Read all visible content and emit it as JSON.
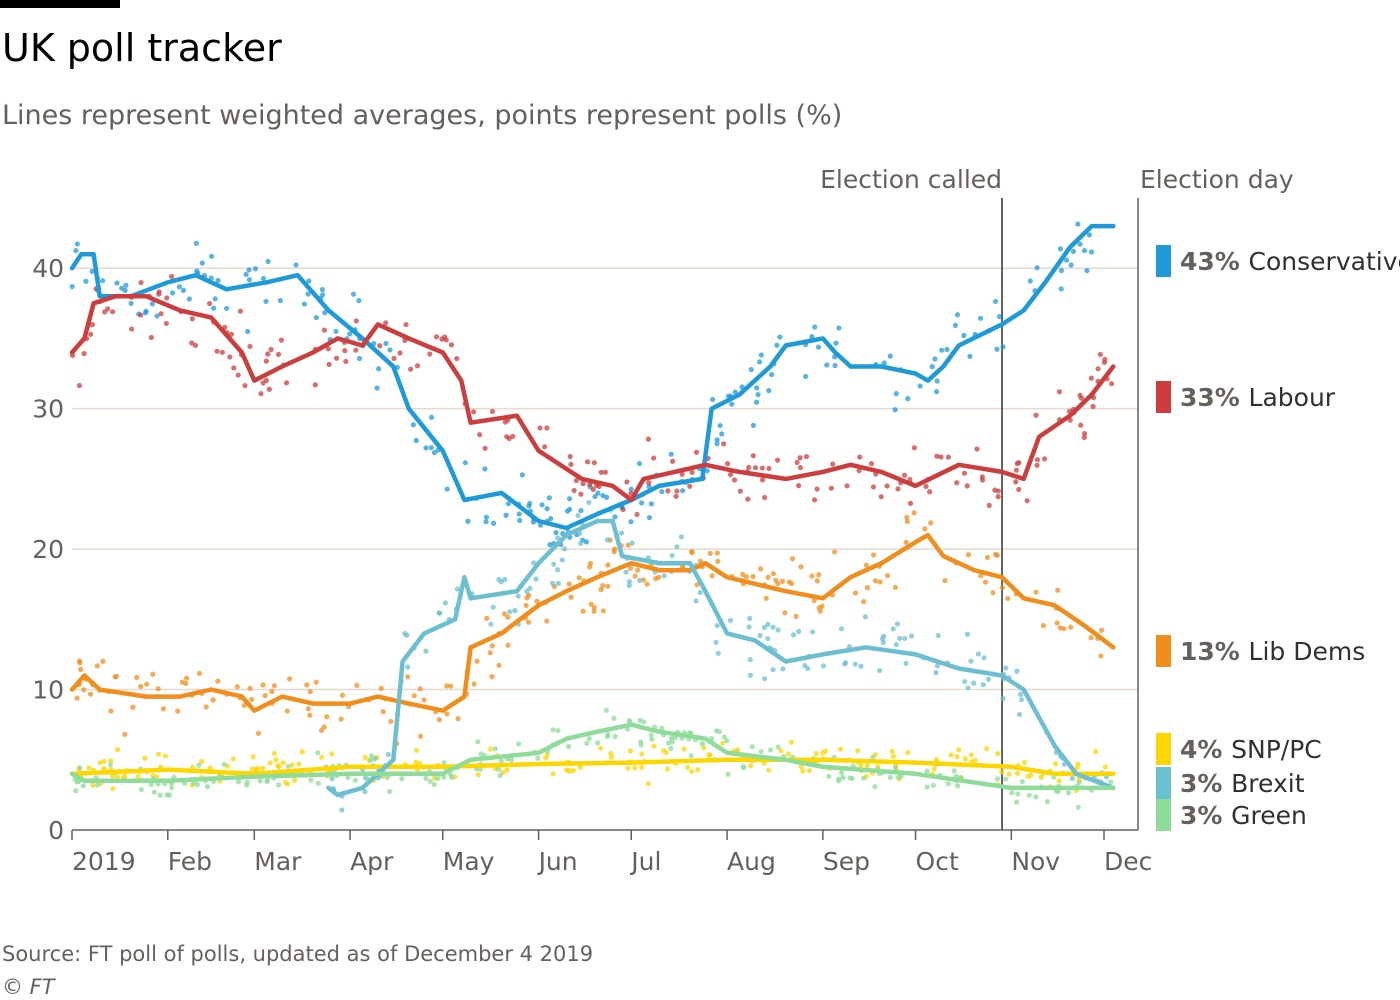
{
  "title": "UK poll tracker",
  "subtitle": "Lines represent weighted averages, points represent polls (%)",
  "source": "Source: FT poll of polls, updated as of December 4 2019",
  "credit": "© FT",
  "chart_data": {
    "type": "line",
    "ylim": [
      0,
      45
    ],
    "yticks": [
      0,
      10,
      20,
      30,
      40
    ],
    "ytick_labels": [
      "0",
      "10",
      "20",
      "30",
      "40"
    ],
    "x_range": [
      "2019-01-01",
      "2019-12-12"
    ],
    "xticks": [
      {
        "date": "2019-01-01",
        "label": "2019"
      },
      {
        "date": "2019-02-01",
        "label": "Feb"
      },
      {
        "date": "2019-03-01",
        "label": "Mar"
      },
      {
        "date": "2019-04-01",
        "label": "Apr"
      },
      {
        "date": "2019-05-01",
        "label": "May"
      },
      {
        "date": "2019-06-01",
        "label": "Jun"
      },
      {
        "date": "2019-07-01",
        "label": "Jul"
      },
      {
        "date": "2019-08-01",
        "label": "Aug"
      },
      {
        "date": "2019-09-01",
        "label": "Sep"
      },
      {
        "date": "2019-10-01",
        "label": "Oct"
      },
      {
        "date": "2019-11-01",
        "label": "Nov"
      },
      {
        "date": "2019-12-01",
        "label": "Dec"
      }
    ],
    "grid": true,
    "legend": "right",
    "annotations": [
      {
        "date": "2019-10-29",
        "label": "Election called"
      },
      {
        "date": "2019-12-12",
        "label": "Election day"
      }
    ],
    "series": [
      {
        "name": "Conservative",
        "label_value": "43%",
        "color": "#1f9ad8",
        "points": [
          [
            "2019-01-01",
            40
          ],
          [
            "2019-01-04",
            41
          ],
          [
            "2019-01-08",
            41
          ],
          [
            "2019-01-10",
            38
          ],
          [
            "2019-01-20",
            38
          ],
          [
            "2019-02-01",
            39
          ],
          [
            "2019-02-10",
            39.5
          ],
          [
            "2019-02-20",
            38.5
          ],
          [
            "2019-03-05",
            39
          ],
          [
            "2019-03-15",
            39.5
          ],
          [
            "2019-03-25",
            37
          ],
          [
            "2019-04-05",
            35
          ],
          [
            "2019-04-15",
            33
          ],
          [
            "2019-04-20",
            30
          ],
          [
            "2019-05-01",
            27
          ],
          [
            "2019-05-08",
            23.5
          ],
          [
            "2019-05-20",
            24
          ],
          [
            "2019-06-01",
            22
          ],
          [
            "2019-06-10",
            21.5
          ],
          [
            "2019-06-20",
            22.5
          ],
          [
            "2019-07-01",
            23.5
          ],
          [
            "2019-07-10",
            24.5
          ],
          [
            "2019-07-24",
            25
          ],
          [
            "2019-07-27",
            30
          ],
          [
            "2019-08-05",
            31
          ],
          [
            "2019-08-15",
            33
          ],
          [
            "2019-08-20",
            34.5
          ],
          [
            "2019-09-01",
            35
          ],
          [
            "2019-09-05",
            34
          ],
          [
            "2019-09-10",
            33
          ],
          [
            "2019-09-20",
            33
          ],
          [
            "2019-10-01",
            32.5
          ],
          [
            "2019-10-05",
            32
          ],
          [
            "2019-10-10",
            33
          ],
          [
            "2019-10-15",
            34.5
          ],
          [
            "2019-10-29",
            36
          ],
          [
            "2019-11-05",
            37
          ],
          [
            "2019-11-12",
            39
          ],
          [
            "2019-11-20",
            41.5
          ],
          [
            "2019-11-27",
            43
          ],
          [
            "2019-12-04",
            43
          ]
        ]
      },
      {
        "name": "Labour",
        "label_value": "33%",
        "color": "#cc3d3d",
        "points": [
          [
            "2019-01-01",
            34
          ],
          [
            "2019-01-05",
            35
          ],
          [
            "2019-01-08",
            37.5
          ],
          [
            "2019-01-15",
            38
          ],
          [
            "2019-01-25",
            38
          ],
          [
            "2019-02-05",
            37
          ],
          [
            "2019-02-15",
            36.5
          ],
          [
            "2019-02-25",
            34
          ],
          [
            "2019-03-01",
            32
          ],
          [
            "2019-03-10",
            33
          ],
          [
            "2019-03-20",
            34
          ],
          [
            "2019-03-28",
            35
          ],
          [
            "2019-04-05",
            34.5
          ],
          [
            "2019-04-10",
            36
          ],
          [
            "2019-04-20",
            35
          ],
          [
            "2019-05-01",
            34
          ],
          [
            "2019-05-07",
            32
          ],
          [
            "2019-05-10",
            29
          ],
          [
            "2019-05-25",
            29.5
          ],
          [
            "2019-06-01",
            27
          ],
          [
            "2019-06-15",
            25
          ],
          [
            "2019-06-25",
            24.5
          ],
          [
            "2019-07-01",
            23.5
          ],
          [
            "2019-07-05",
            25
          ],
          [
            "2019-07-15",
            25.5
          ],
          [
            "2019-07-25",
            26
          ],
          [
            "2019-08-05",
            25.5
          ],
          [
            "2019-08-20",
            25
          ],
          [
            "2019-09-01",
            25.5
          ],
          [
            "2019-09-10",
            26
          ],
          [
            "2019-09-20",
            25.5
          ],
          [
            "2019-10-01",
            24.5
          ],
          [
            "2019-10-15",
            26
          ],
          [
            "2019-10-29",
            25.5
          ],
          [
            "2019-11-05",
            25
          ],
          [
            "2019-11-10",
            28
          ],
          [
            "2019-11-20",
            29.5
          ],
          [
            "2019-11-27",
            31
          ],
          [
            "2019-12-04",
            33
          ]
        ]
      },
      {
        "name": "Lib Dems",
        "label_value": "13%",
        "color": "#f18d1d",
        "points": [
          [
            "2019-01-01",
            10
          ],
          [
            "2019-01-05",
            11
          ],
          [
            "2019-01-10",
            10
          ],
          [
            "2019-01-25",
            9.5
          ],
          [
            "2019-02-05",
            9.5
          ],
          [
            "2019-02-15",
            10
          ],
          [
            "2019-02-25",
            9.5
          ],
          [
            "2019-03-01",
            8.5
          ],
          [
            "2019-03-10",
            9.5
          ],
          [
            "2019-03-20",
            9
          ],
          [
            "2019-04-01",
            9
          ],
          [
            "2019-04-10",
            9.5
          ],
          [
            "2019-04-20",
            9
          ],
          [
            "2019-05-01",
            8.5
          ],
          [
            "2019-05-08",
            9.5
          ],
          [
            "2019-05-10",
            13
          ],
          [
            "2019-05-20",
            14
          ],
          [
            "2019-06-01",
            16
          ],
          [
            "2019-06-10",
            17
          ],
          [
            "2019-06-20",
            18
          ],
          [
            "2019-07-01",
            19
          ],
          [
            "2019-07-10",
            18.5
          ],
          [
            "2019-07-20",
            18.5
          ],
          [
            "2019-07-25",
            19
          ],
          [
            "2019-08-01",
            18
          ],
          [
            "2019-08-20",
            17
          ],
          [
            "2019-09-01",
            16.5
          ],
          [
            "2019-09-10",
            18
          ],
          [
            "2019-09-20",
            19
          ],
          [
            "2019-10-01",
            20.5
          ],
          [
            "2019-10-05",
            21
          ],
          [
            "2019-10-10",
            19.5
          ],
          [
            "2019-10-20",
            18.5
          ],
          [
            "2019-10-29",
            18
          ],
          [
            "2019-11-05",
            16.5
          ],
          [
            "2019-11-15",
            16
          ],
          [
            "2019-11-25",
            14.5
          ],
          [
            "2019-12-04",
            13
          ]
        ]
      },
      {
        "name": "SNP/PC",
        "label_value": "4%",
        "color": "#fcd600",
        "points": [
          [
            "2019-01-01",
            4
          ],
          [
            "2019-02-01",
            4.3
          ],
          [
            "2019-03-01",
            4
          ],
          [
            "2019-04-01",
            4.5
          ],
          [
            "2019-05-01",
            4.5
          ],
          [
            "2019-06-01",
            4.7
          ],
          [
            "2019-07-01",
            4.8
          ],
          [
            "2019-08-01",
            5
          ],
          [
            "2019-09-01",
            5
          ],
          [
            "2019-10-01",
            4.8
          ],
          [
            "2019-11-01",
            4.5
          ],
          [
            "2019-11-15",
            4
          ],
          [
            "2019-12-04",
            4
          ]
        ]
      },
      {
        "name": "Brexit",
        "label_value": "3%",
        "color": "#6cbfd0",
        "points": [
          [
            "2019-03-25",
            3
          ],
          [
            "2019-03-28",
            2.5
          ],
          [
            "2019-04-05",
            3
          ],
          [
            "2019-04-10",
            4
          ],
          [
            "2019-04-15",
            5
          ],
          [
            "2019-04-18",
            12
          ],
          [
            "2019-04-25",
            14
          ],
          [
            "2019-05-05",
            15
          ],
          [
            "2019-05-08",
            18
          ],
          [
            "2019-05-10",
            16.5
          ],
          [
            "2019-05-25",
            17
          ],
          [
            "2019-06-01",
            19
          ],
          [
            "2019-06-10",
            21
          ],
          [
            "2019-06-20",
            22
          ],
          [
            "2019-06-25",
            22
          ],
          [
            "2019-06-28",
            19.5
          ],
          [
            "2019-07-10",
            19
          ],
          [
            "2019-07-20",
            19
          ],
          [
            "2019-07-25",
            17
          ],
          [
            "2019-08-01",
            14
          ],
          [
            "2019-08-10",
            13.5
          ],
          [
            "2019-08-20",
            12
          ],
          [
            "2019-09-01",
            12.5
          ],
          [
            "2019-09-15",
            13
          ],
          [
            "2019-10-01",
            12.5
          ],
          [
            "2019-10-15",
            11.5
          ],
          [
            "2019-10-29",
            11
          ],
          [
            "2019-11-05",
            10
          ],
          [
            "2019-11-10",
            8
          ],
          [
            "2019-11-15",
            6
          ],
          [
            "2019-11-22",
            4
          ],
          [
            "2019-12-04",
            3
          ]
        ]
      },
      {
        "name": "Green",
        "label_value": "3%",
        "color": "#8edb9a",
        "points": [
          [
            "2019-01-01",
            4
          ],
          [
            "2019-01-05",
            3.5
          ],
          [
            "2019-02-01",
            3.5
          ],
          [
            "2019-03-01",
            3.8
          ],
          [
            "2019-04-01",
            4
          ],
          [
            "2019-05-01",
            4
          ],
          [
            "2019-05-10",
            5
          ],
          [
            "2019-06-01",
            5.5
          ],
          [
            "2019-06-10",
            6.5
          ],
          [
            "2019-06-20",
            7
          ],
          [
            "2019-07-01",
            7.5
          ],
          [
            "2019-07-10",
            7
          ],
          [
            "2019-07-25",
            6.5
          ],
          [
            "2019-08-01",
            5.5
          ],
          [
            "2019-08-20",
            5
          ],
          [
            "2019-09-01",
            4.5
          ],
          [
            "2019-10-01",
            4
          ],
          [
            "2019-11-01",
            3
          ],
          [
            "2019-11-15",
            3
          ],
          [
            "2019-12-04",
            3
          ]
        ]
      }
    ]
  }
}
